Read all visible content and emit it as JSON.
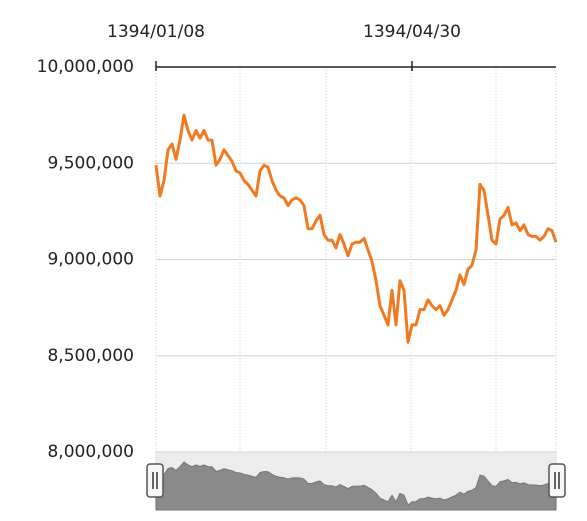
{
  "chart_data": {
    "type": "line",
    "categories": [
      "1394/01/08",
      null,
      null,
      null,
      null,
      null,
      null,
      null,
      null,
      null,
      null,
      null,
      null,
      null,
      null,
      null,
      null,
      null,
      null,
      null,
      null,
      null,
      null,
      null,
      null,
      null,
      null,
      null,
      null,
      null,
      null,
      null,
      null,
      null,
      null,
      null,
      null,
      null,
      null,
      null,
      null,
      null,
      null,
      null,
      null,
      null,
      null,
      null,
      null,
      null,
      null,
      null,
      null,
      null,
      null,
      null,
      null,
      null,
      null,
      null,
      null,
      null,
      null,
      null,
      "1394/04/30",
      null,
      null,
      null,
      null,
      null,
      null,
      null,
      null,
      null,
      null,
      null,
      null,
      null,
      null,
      null,
      null,
      null,
      null,
      null,
      null,
      null,
      null,
      null,
      null,
      null,
      null,
      null,
      null,
      null,
      null,
      null,
      null,
      null,
      null,
      null,
      null
    ],
    "values": [
      9490000,
      9330000,
      9410000,
      9570000,
      9600000,
      9520000,
      9620000,
      9750000,
      9670000,
      9620000,
      9670000,
      9630000,
      9670000,
      9620000,
      9620000,
      9490000,
      9520000,
      9570000,
      9540000,
      9510000,
      9460000,
      9450000,
      9410000,
      9390000,
      9360000,
      9330000,
      9460000,
      9490000,
      9480000,
      9410000,
      9360000,
      9330000,
      9320000,
      9280000,
      9310000,
      9320000,
      9310000,
      9280000,
      9160000,
      9160000,
      9200000,
      9230000,
      9130000,
      9100000,
      9100000,
      9060000,
      9130000,
      9080000,
      9020000,
      9080000,
      9090000,
      9090000,
      9110000,
      9050000,
      8990000,
      8890000,
      8760000,
      8710000,
      8660000,
      8840000,
      8660000,
      8890000,
      8840000,
      8570000,
      8660000,
      8660000,
      8740000,
      8740000,
      8790000,
      8760000,
      8740000,
      8760000,
      8710000,
      8740000,
      8790000,
      8840000,
      8920000,
      8870000,
      8950000,
      8970000,
      9050000,
      9390000,
      9360000,
      9230000,
      9100000,
      9080000,
      9210000,
      9230000,
      9270000,
      9180000,
      9190000,
      9150000,
      9180000,
      9130000,
      9120000,
      9120000,
      9100000,
      9120000,
      9160000,
      9150000,
      9090000
    ],
    "color": "#f07a22",
    "ylim": [
      8000000,
      10000000
    ],
    "yticks": [
      {
        "value": 8000000,
        "label": "8,000,000"
      },
      {
        "value": 8500000,
        "label": "8,500,000"
      },
      {
        "value": 9000000,
        "label": "9,000,000"
      },
      {
        "value": 9500000,
        "label": "9,500,000"
      },
      {
        "value": 10000000,
        "label": "10,000,000"
      }
    ],
    "grid": true
  }
}
